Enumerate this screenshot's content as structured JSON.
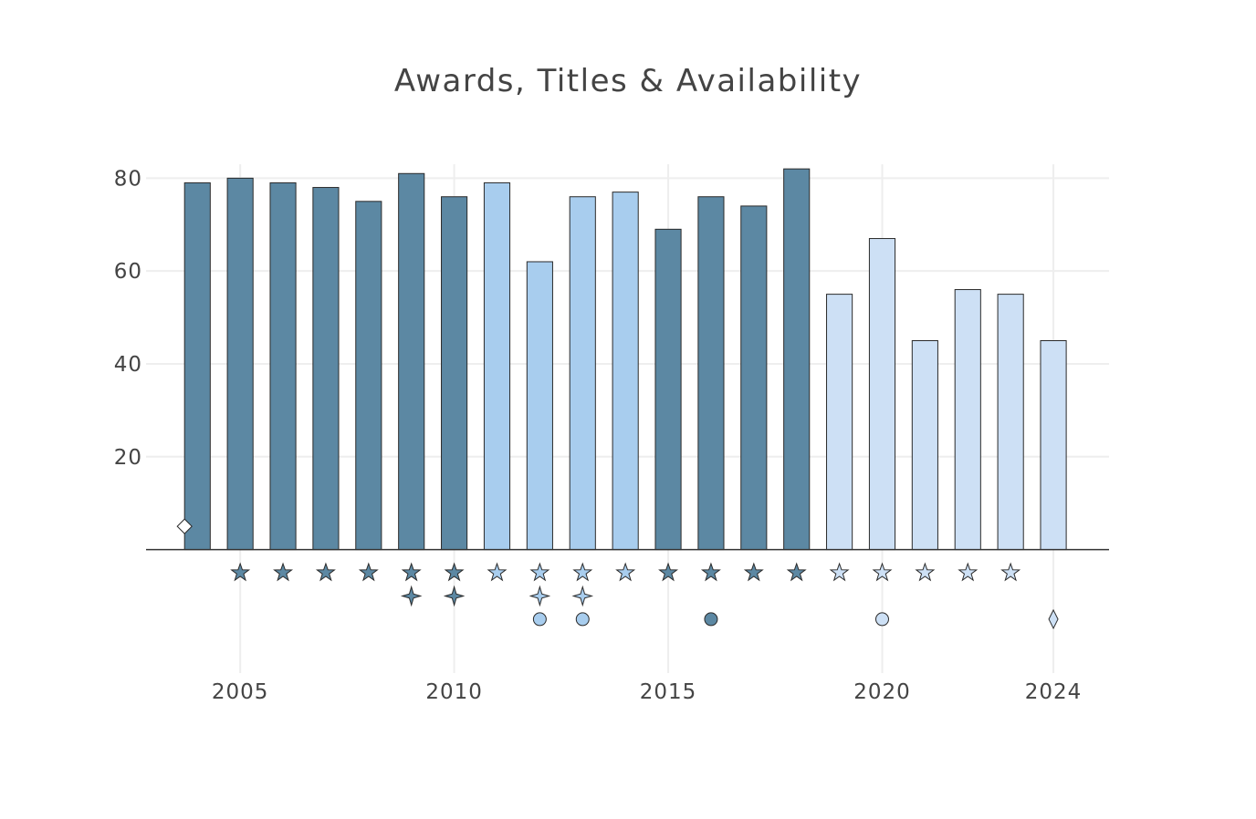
{
  "chart_data": {
    "type": "bar",
    "title": "Awards, Titles & Availability",
    "xlabel": "",
    "ylabel": "",
    "x": [
      2004,
      2005,
      2006,
      2007,
      2008,
      2009,
      2010,
      2011,
      2012,
      2013,
      2014,
      2015,
      2016,
      2017,
      2018,
      2019,
      2020,
      2021,
      2022,
      2023,
      2024
    ],
    "values": [
      79,
      80,
      79,
      78,
      75,
      81,
      76,
      79,
      62,
      76,
      77,
      69,
      76,
      74,
      82,
      55,
      67,
      45,
      56,
      55,
      45
    ],
    "bar_colors": [
      "#5c88a3",
      "#5c88a3",
      "#5c88a3",
      "#5c88a3",
      "#5c88a3",
      "#5c88a3",
      "#5c88a3",
      "#a8cdee",
      "#a8cdee",
      "#a8cdee",
      "#a8cdee",
      "#5c88a3",
      "#5c88a3",
      "#5c88a3",
      "#5c88a3",
      "#cde0f5",
      "#cde0f5",
      "#cde0f5",
      "#cde0f5",
      "#cde0f5",
      "#cde0f5"
    ],
    "xticks": [
      2005,
      2010,
      2015,
      2020,
      2024
    ],
    "yticks": [
      20,
      40,
      60,
      80
    ],
    "ylim": [
      -27,
      84
    ],
    "xlim": [
      2002.8,
      2025.3
    ],
    "grid": true,
    "marker_rows": [
      {
        "symbol": "star",
        "y": -5,
        "points": [
          {
            "x": 2005,
            "color": "#5c88a3"
          },
          {
            "x": 2006,
            "color": "#5c88a3"
          },
          {
            "x": 2007,
            "color": "#5c88a3"
          },
          {
            "x": 2008,
            "color": "#5c88a3"
          },
          {
            "x": 2009,
            "color": "#5c88a3"
          },
          {
            "x": 2010,
            "color": "#5c88a3"
          },
          {
            "x": 2011,
            "color": "#a8cdee"
          },
          {
            "x": 2012,
            "color": "#a8cdee"
          },
          {
            "x": 2013,
            "color": "#a8cdee"
          },
          {
            "x": 2014,
            "color": "#a8cdee"
          },
          {
            "x": 2015,
            "color": "#5c88a3"
          },
          {
            "x": 2016,
            "color": "#5c88a3"
          },
          {
            "x": 2017,
            "color": "#5c88a3"
          },
          {
            "x": 2018,
            "color": "#5c88a3"
          },
          {
            "x": 2019,
            "color": "#cde0f5"
          },
          {
            "x": 2020,
            "color": "#cde0f5"
          },
          {
            "x": 2021,
            "color": "#cde0f5"
          },
          {
            "x": 2022,
            "color": "#cde0f5"
          },
          {
            "x": 2023,
            "color": "#cde0f5"
          }
        ]
      },
      {
        "symbol": "star4",
        "y": -10,
        "points": [
          {
            "x": 2009,
            "color": "#5c88a3"
          },
          {
            "x": 2010,
            "color": "#5c88a3"
          },
          {
            "x": 2012,
            "color": "#a8cdee"
          },
          {
            "x": 2013,
            "color": "#a8cdee"
          }
        ]
      },
      {
        "symbol": "circle",
        "y": -15,
        "points": [
          {
            "x": 2012,
            "color": "#a8cdee"
          },
          {
            "x": 2013,
            "color": "#a8cdee"
          },
          {
            "x": 2016,
            "color": "#5c88a3"
          },
          {
            "x": 2020,
            "color": "#cde0f5"
          }
        ]
      },
      {
        "symbol": "diamond-tall",
        "y": -15,
        "points": [
          {
            "x": 2024,
            "color": "#cde0f5"
          }
        ]
      },
      {
        "symbol": "diamond",
        "y": 5,
        "points": [
          {
            "x": 2003.7,
            "color": "#ffffff"
          }
        ]
      }
    ]
  }
}
